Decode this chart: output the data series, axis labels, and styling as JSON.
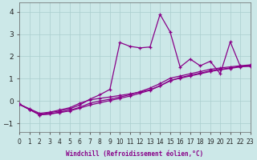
{
  "xlabel": "Windchill (Refroidissement éolien,°C)",
  "bg_color": "#cce8e8",
  "grid_color": "#aacece",
  "line_color": "#880088",
  "x": [
    0,
    1,
    2,
    3,
    4,
    5,
    6,
    7,
    8,
    9,
    10,
    11,
    12,
    13,
    14,
    15,
    16,
    17,
    18,
    19,
    20,
    21,
    22,
    23
  ],
  "ylim": [
    -1.4,
    4.4
  ],
  "xlim": [
    0,
    23
  ],
  "yticks": [
    -1,
    0,
    1,
    2,
    3,
    4
  ],
  "series": [
    [
      -0.15,
      -0.35,
      -0.55,
      -0.5,
      -0.4,
      -0.3,
      -0.1,
      0.05,
      0.12,
      0.18,
      0.25,
      0.32,
      0.4,
      0.5,
      0.68,
      0.9,
      1.05,
      1.15,
      1.25,
      1.35,
      1.42,
      1.48,
      1.55,
      1.6
    ],
    [
      -0.15,
      -0.38,
      -0.62,
      -0.58,
      -0.5,
      -0.42,
      -0.28,
      -0.1,
      0.0,
      0.08,
      0.18,
      0.28,
      0.42,
      0.58,
      0.78,
      1.02,
      1.12,
      1.22,
      1.32,
      1.42,
      1.48,
      1.53,
      1.58,
      1.62
    ],
    [
      -0.15,
      -0.38,
      -0.62,
      -0.58,
      -0.52,
      -0.44,
      -0.32,
      -0.18,
      -0.08,
      0.02,
      0.12,
      0.22,
      0.35,
      0.48,
      0.68,
      0.92,
      1.02,
      1.12,
      1.22,
      1.32,
      1.4,
      1.46,
      1.53,
      1.58
    ],
    [
      -0.15,
      -0.38,
      -0.6,
      -0.52,
      -0.45,
      -0.35,
      -0.18,
      0.08,
      0.28,
      0.52,
      2.62,
      2.45,
      2.38,
      2.42,
      3.88,
      3.1,
      1.52,
      1.88,
      1.58,
      1.78,
      1.22,
      2.65,
      1.55,
      1.55
    ]
  ]
}
